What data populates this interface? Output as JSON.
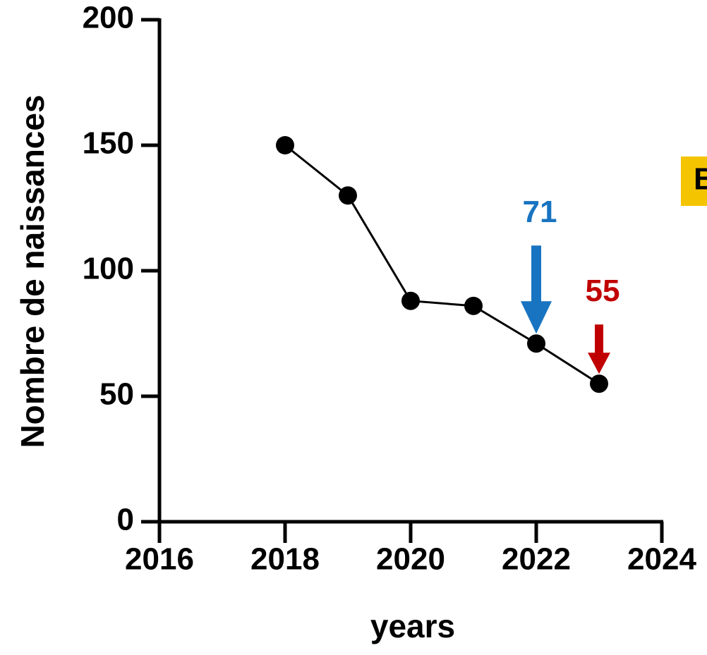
{
  "chart_data": {
    "type": "line",
    "x_label": "years",
    "y_label": "Nombre de naissances",
    "x": [
      2018,
      2019,
      2020,
      2021,
      2022,
      2023
    ],
    "series": [
      {
        "color": "#000000",
        "values": [
          150,
          130,
          88,
          86,
          71,
          55
        ]
      }
    ],
    "xlim": [
      2016,
      2024
    ],
    "xticks": [
      2016,
      2018,
      2020,
      2022,
      2024
    ],
    "ylim": [
      0,
      200
    ],
    "yticks": [
      0,
      50,
      100,
      150,
      200
    ],
    "annotations": [
      {
        "text": "71",
        "x": 2022,
        "color": "#1874c1"
      },
      {
        "text": "55",
        "x": 2023,
        "color": "#c00000"
      }
    ],
    "badge": "B"
  }
}
